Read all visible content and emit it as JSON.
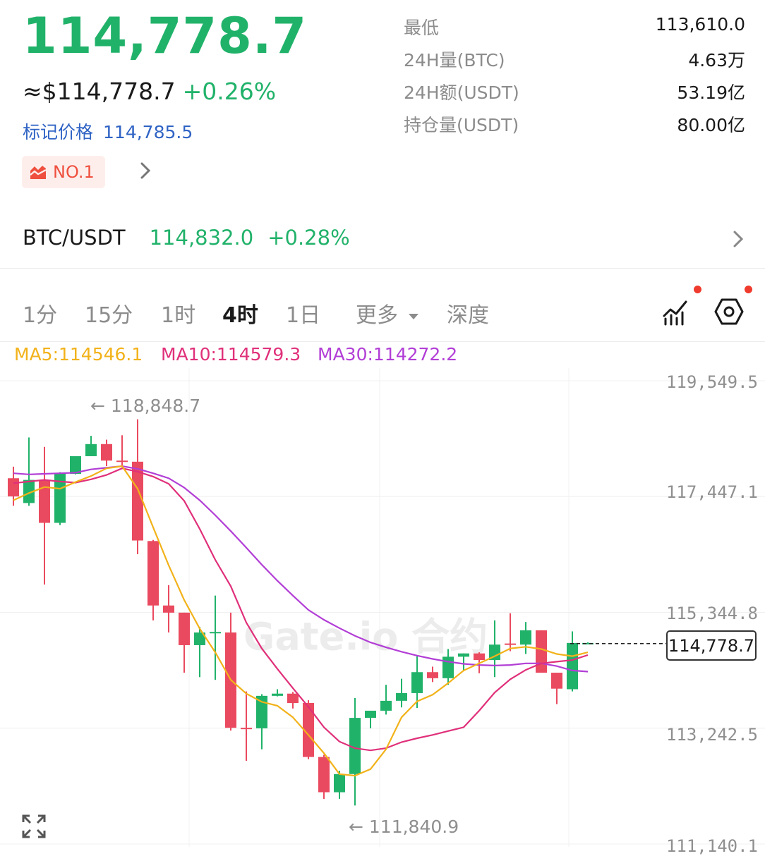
{
  "header": {
    "last_price": "114,778.7",
    "approx_usd": "≈$114,778.7",
    "change_pct": "+0.26%",
    "mark_price_label": "标记价格",
    "mark_price_value": "114,785.5",
    "rank_badge": "NO.1",
    "rank_badge_icon": "trend-chart-icon"
  },
  "stats": [
    {
      "label": "最低",
      "value": "113,610.0"
    },
    {
      "label": "24H量(BTC)",
      "value": "4.63万"
    },
    {
      "label": "24H额(USDT)",
      "value": "53.19亿"
    },
    {
      "label": "持仓量(USDT)",
      "value": "80.00亿"
    }
  ],
  "spot": {
    "pair": "BTC/USDT",
    "price": "114,832.0",
    "change": "+0.28%"
  },
  "timeframes": {
    "items": [
      "1分",
      "15分",
      "1时",
      "4时",
      "1日",
      "更多",
      "深度"
    ],
    "active": "4时"
  },
  "indicators": {
    "ma5": "MA5:114546.1",
    "ma10": "MA10:114579.3",
    "ma30": "MA30:114272.2"
  },
  "colors": {
    "up": "#21b26a",
    "down": "#ea4a5f",
    "ma5": "#f2b21a",
    "ma10": "#e0307a",
    "ma30": "#b23ed6",
    "mark": "#2f63c4"
  },
  "chart_data": {
    "type": "candlestick",
    "y_ticks": [
      "119,549.5",
      "117,447.1",
      "115,344.8",
      "113,242.5",
      "111,140.1"
    ],
    "ylim": [
      111140.1,
      119549.5
    ],
    "high_annotation": "← 118,848.7",
    "low_annotation": "← 111,840.9",
    "current_price": "114,778.7",
    "watermark": "Gate.io 合约",
    "candles": [
      {
        "o": 117780,
        "h": 117990,
        "c": 117450,
        "l": 117280
      },
      {
        "o": 117330,
        "h": 118520,
        "c": 117750,
        "l": 117280
      },
      {
        "o": 117750,
        "h": 118350,
        "c": 116970,
        "l": 115850
      },
      {
        "o": 116970,
        "h": 117890,
        "c": 117860,
        "l": 116930
      },
      {
        "o": 117860,
        "h": 118150,
        "c": 118180,
        "l": 117850
      },
      {
        "o": 118180,
        "h": 118550,
        "c": 118400,
        "l": 118230
      },
      {
        "o": 118400,
        "h": 118480,
        "c": 118100,
        "l": 118000
      },
      {
        "o": 118100,
        "h": 118560,
        "c": 118080,
        "l": 118000
      },
      {
        "o": 118080,
        "h": 118850,
        "c": 116650,
        "l": 116400
      },
      {
        "o": 116640,
        "h": 116660,
        "c": 115470,
        "l": 115200
      },
      {
        "o": 115470,
        "h": 115840,
        "c": 115340,
        "l": 114980
      },
      {
        "o": 115340,
        "h": 115340,
        "c": 114750,
        "l": 114250
      },
      {
        "o": 114750,
        "h": 115080,
        "c": 114980,
        "l": 114170
      },
      {
        "o": 114990,
        "h": 115650,
        "c": 114990,
        "l": 114120
      },
      {
        "o": 114980,
        "h": 115340,
        "c": 113250,
        "l": 113200
      },
      {
        "o": 113250,
        "h": 113910,
        "c": 113240,
        "l": 112650
      },
      {
        "o": 113240,
        "h": 113860,
        "c": 113830,
        "l": 112860
      },
      {
        "o": 113830,
        "h": 113950,
        "c": 113870,
        "l": 113820
      },
      {
        "o": 113870,
        "h": 113900,
        "c": 113700,
        "l": 113600
      },
      {
        "o": 113700,
        "h": 113750,
        "c": 112720,
        "l": 112680
      },
      {
        "o": 112720,
        "h": 112760,
        "c": 112080,
        "l": 111960
      },
      {
        "o": 112080,
        "h": 112470,
        "c": 112410,
        "l": 111960
      },
      {
        "o": 112410,
        "h": 113790,
        "c": 113430,
        "l": 111840
      },
      {
        "o": 113430,
        "h": 113550,
        "c": 113560,
        "l": 113240
      },
      {
        "o": 113560,
        "h": 114030,
        "c": 113740,
        "l": 113490
      },
      {
        "o": 113740,
        "h": 114140,
        "c": 113880,
        "l": 113620
      },
      {
        "o": 113880,
        "h": 114550,
        "c": 114260,
        "l": 113610
      },
      {
        "o": 114260,
        "h": 114360,
        "c": 114150,
        "l": 114080
      },
      {
        "o": 114150,
        "h": 114680,
        "c": 114540,
        "l": 114030
      },
      {
        "o": 114540,
        "h": 114600,
        "c": 114600,
        "l": 114280
      },
      {
        "o": 114600,
        "h": 114620,
        "c": 114480,
        "l": 114240
      },
      {
        "o": 114480,
        "h": 115200,
        "c": 114760,
        "l": 114170
      },
      {
        "o": 114780,
        "h": 115330,
        "c": 114760,
        "l": 114640
      },
      {
        "o": 114760,
        "h": 115170,
        "c": 115020,
        "l": 114590
      },
      {
        "o": 115020,
        "h": 115020,
        "c": 114250,
        "l": 114250
      },
      {
        "o": 114250,
        "h": 114250,
        "c": 113960,
        "l": 113680
      },
      {
        "o": 113950,
        "h": 115000,
        "c": 114790,
        "l": 113910
      },
      {
        "o": 114780,
        "h": 114800,
        "c": 114790,
        "l": 114770
      }
    ],
    "ma5_series": [
      117380,
      117510,
      117620,
      117590,
      117710,
      117820,
      117960,
      118000,
      117590,
      116890,
      116200,
      115570,
      115050,
      114620,
      114120,
      113870,
      113720,
      113650,
      113440,
      113120,
      112790,
      112410,
      112380,
      112500,
      112860,
      113440,
      113730,
      113850,
      114060,
      114290,
      114420,
      114550,
      114690,
      114720,
      114680,
      114590,
      114550,
      114620
    ],
    "ma10_series": [
      117690,
      117720,
      117750,
      117720,
      117700,
      117760,
      117840,
      117960,
      117900,
      117810,
      117680,
      117370,
      116860,
      116300,
      115820,
      115160,
      114690,
      114320,
      113970,
      113630,
      113260,
      113000,
      112880,
      112840,
      112880,
      112990,
      113060,
      113120,
      113190,
      113260,
      113560,
      113890,
      114130,
      114300,
      114420,
      114450,
      114480,
      114570
    ],
    "ma30_series": [
      117870,
      117850,
      117860,
      117870,
      117880,
      117940,
      117970,
      118000,
      117950,
      117870,
      117780,
      117610,
      117380,
      117110,
      116820,
      116520,
      116210,
      115920,
      115650,
      115390,
      115210,
      115060,
      114920,
      114800,
      114710,
      114630,
      114560,
      114500,
      114450,
      114410,
      114390,
      114380,
      114390,
      114420,
      114420,
      114370,
      114290,
      114270
    ]
  },
  "icons": {
    "indicator_settings": "chart-indicator-icon",
    "chart_settings": "hexagon-settings-icon",
    "expand": "fullscreen-icon",
    "chevron": "chevron-right-icon",
    "dropdown": "caret-down-icon"
  }
}
